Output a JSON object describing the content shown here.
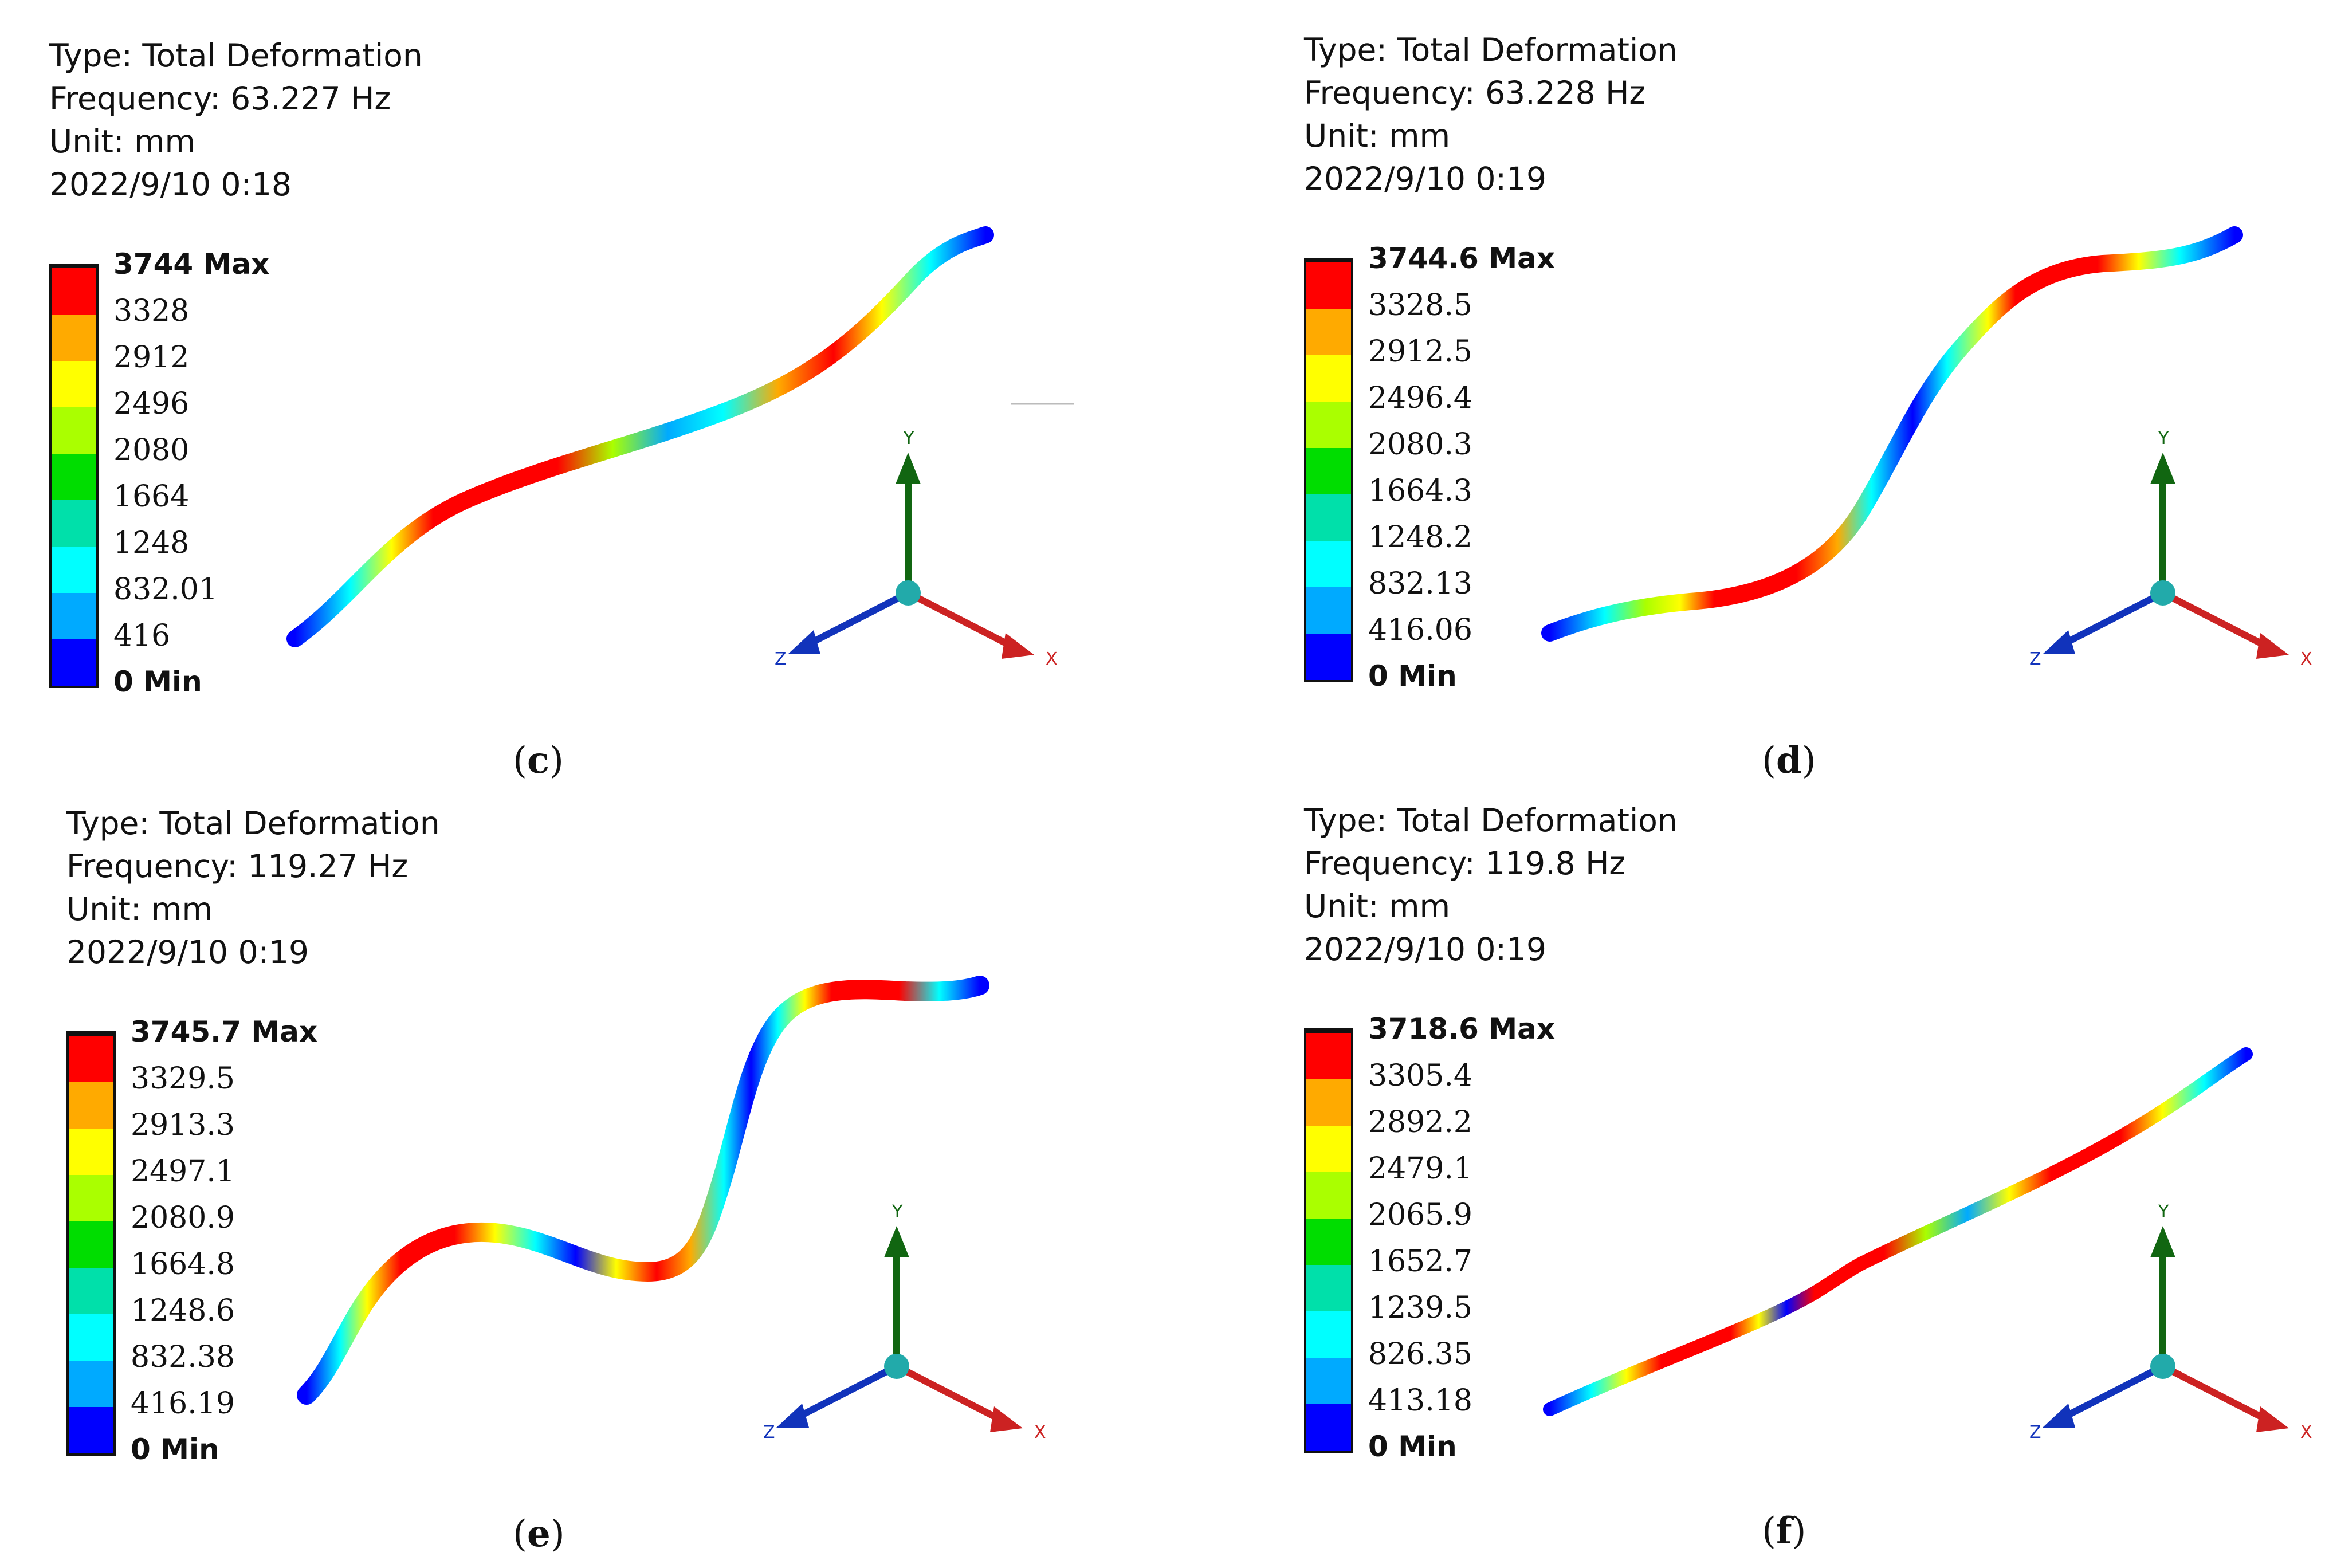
{
  "panels": [
    {
      "id": "c",
      "type_line": "Type: Total Deformation",
      "frequency_line": "Frequency: 63.227 Hz",
      "unit_line": "Unit: mm",
      "date_line": "2022/9/10 0:18",
      "legend_values": [
        "3744 Max",
        "3328",
        "2912",
        "2496",
        "2080",
        "1664",
        "1248",
        "832.01",
        "416",
        "0 Min"
      ],
      "caption_label": "c"
    },
    {
      "id": "d",
      "type_line": "Type: Total Deformation",
      "frequency_line": "Frequency: 63.228 Hz",
      "unit_line": "Unit: mm",
      "date_line": "2022/9/10 0:19",
      "legend_values": [
        "3744.6 Max",
        "3328.5",
        "2912.5",
        "2496.4",
        "2080.3",
        "1664.3",
        "1248.2",
        "832.13",
        "416.06",
        "0 Min"
      ],
      "caption_label": "d"
    },
    {
      "id": "e",
      "type_line": "Type: Total Deformation",
      "frequency_line": "Frequency: 119.27 Hz",
      "unit_line": "Unit: mm",
      "date_line": "2022/9/10 0:19",
      "legend_values": [
        "3745.7 Max",
        "3329.5",
        "2913.3",
        "2497.1",
        "2080.9",
        "1664.8",
        "1248.6",
        "832.38",
        "416.19",
        "0 Min"
      ],
      "caption_label": "e"
    },
    {
      "id": "f",
      "type_line": "Type: Total Deformation",
      "frequency_line": "Frequency: 119.8 Hz",
      "unit_line": "Unit: mm",
      "date_line": "2022/9/10 0:19",
      "legend_values": [
        "3718.6 Max",
        "3305.4",
        "2892.2",
        "2479.1",
        "2065.9",
        "1652.7",
        "1239.5",
        "826.35",
        "413.18",
        "0 Min"
      ],
      "caption_label": "f"
    }
  ],
  "legend_colors": [
    "#ff0000",
    "#ffaa00",
    "#ffff00",
    "#aaff00",
    "#00dd00",
    "#00e0aa",
    "#00ffff",
    "#00aaff",
    "#0000ff"
  ],
  "axis_labels": {
    "x": "X",
    "y": "Y",
    "z": "Z"
  },
  "axis_colors": {
    "x": "#cc2222",
    "y": "#116611",
    "z": "#1133bb",
    "origin": "#22aaaa"
  }
}
